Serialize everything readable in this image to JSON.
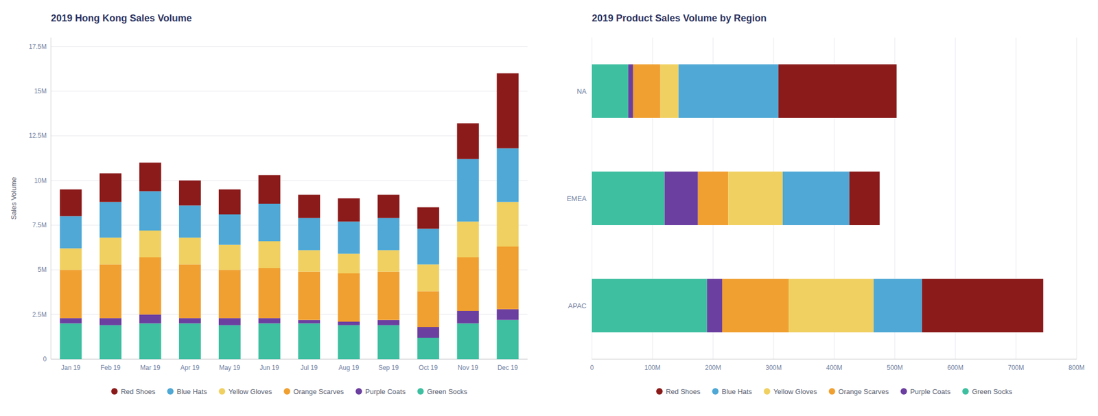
{
  "chart_data": [
    {
      "type": "bar",
      "stacked": true,
      "title": "2019 Hong Kong Sales Volume",
      "ylabel": "Sales Volume",
      "categories": [
        "Jan 19",
        "Feb 19",
        "Mar 19",
        "Apr 19",
        "May 19",
        "Jun 19",
        "Jul 19",
        "Aug 19",
        "Sep 19",
        "Oct 19",
        "Nov 19",
        "Dec 19"
      ],
      "series": [
        {
          "name": "Red Shoes",
          "color": "#8B1A1A",
          "values": [
            1500000,
            1600000,
            1600000,
            1400000,
            1400000,
            1600000,
            1300000,
            1300000,
            1300000,
            1200000,
            2000000,
            4200000
          ]
        },
        {
          "name": "Blue Hats",
          "color": "#4FA8D5",
          "values": [
            1800000,
            2000000,
            2200000,
            1800000,
            1700000,
            2100000,
            1800000,
            1800000,
            1800000,
            2000000,
            3500000,
            3000000
          ]
        },
        {
          "name": "Yellow Gloves",
          "color": "#F0D060",
          "values": [
            1200000,
            1500000,
            1500000,
            1500000,
            1400000,
            1500000,
            1200000,
            1100000,
            1200000,
            1500000,
            2000000,
            2500000
          ]
        },
        {
          "name": "Orange Scarves",
          "color": "#F0A030",
          "values": [
            2700000,
            3000000,
            3200000,
            3000000,
            2700000,
            2800000,
            2700000,
            2700000,
            2700000,
            2000000,
            3000000,
            3500000
          ]
        },
        {
          "name": "Purple Coats",
          "color": "#6B3FA0",
          "values": [
            300000,
            400000,
            500000,
            300000,
            400000,
            300000,
            200000,
            200000,
            300000,
            600000,
            700000,
            600000
          ]
        },
        {
          "name": "Green Socks",
          "color": "#3DBFA0",
          "values": [
            2000000,
            1900000,
            2000000,
            2000000,
            1900000,
            2000000,
            2000000,
            1900000,
            1900000,
            1200000,
            2000000,
            2200000
          ]
        }
      ],
      "ylim": [
        0,
        18000000
      ],
      "yticks": [
        0,
        {
          "value": 2500000,
          "label": "2.5M"
        },
        {
          "value": 5000000,
          "label": "5M"
        },
        {
          "value": 7500000,
          "label": "7.5M"
        },
        {
          "value": 10000000,
          "label": "10M"
        },
        {
          "value": 12500000,
          "label": "12.5M"
        },
        {
          "value": 15000000,
          "label": "15M"
        },
        {
          "value": 17500000,
          "label": "17.5M"
        }
      ],
      "grid": true,
      "legend": "bottom"
    },
    {
      "type": "bar",
      "stacked": true,
      "orientation": "horizontal",
      "title": "2019 Product Sales Volume by Region",
      "categories": [
        "NA",
        "EMEA",
        "APAC"
      ],
      "series": [
        {
          "name": "Red Shoes",
          "color": "#8B1A1A",
          "values": [
            195000000,
            50000000,
            200000000
          ]
        },
        {
          "name": "Blue Hats",
          "color": "#4FA8D5",
          "values": [
            165000000,
            110000000,
            80000000
          ]
        },
        {
          "name": "Yellow Gloves",
          "color": "#F0D060",
          "values": [
            30000000,
            90000000,
            140000000
          ]
        },
        {
          "name": "Orange Scarves",
          "color": "#F0A030",
          "values": [
            45000000,
            50000000,
            110000000
          ]
        },
        {
          "name": "Purple Coats",
          "color": "#6B3FA0",
          "values": [
            8000000,
            55000000,
            25000000
          ]
        },
        {
          "name": "Green Socks",
          "color": "#3DBFA0",
          "values": [
            60000000,
            120000000,
            190000000
          ]
        }
      ],
      "xlim": [
        0,
        800000000
      ],
      "xticks": [
        0,
        {
          "value": 100000000,
          "label": "100M"
        },
        {
          "value": 200000000,
          "label": "200M"
        },
        {
          "value": 300000000,
          "label": "300M"
        },
        {
          "value": 400000000,
          "label": "400M"
        },
        {
          "value": 500000000,
          "label": "500M"
        },
        {
          "value": 600000000,
          "label": "600M"
        },
        {
          "value": 700000000,
          "label": "700M"
        },
        {
          "value": 800000000,
          "label": "800M"
        }
      ],
      "grid": true,
      "legend": "bottom"
    }
  ]
}
